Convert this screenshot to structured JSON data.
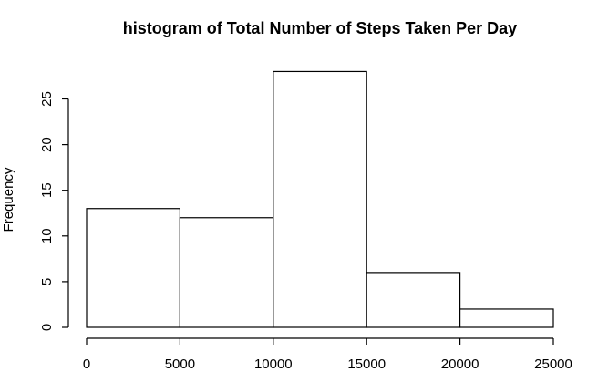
{
  "chart_data": {
    "type": "bar",
    "title": "histogram of Total Number of Steps Taken Per Day",
    "xlabel": "",
    "ylabel": "Frequency",
    "bins": [
      {
        "start": 0,
        "end": 5000,
        "count": 13
      },
      {
        "start": 5000,
        "end": 10000,
        "count": 12
      },
      {
        "start": 10000,
        "end": 15000,
        "count": 28
      },
      {
        "start": 15000,
        "end": 20000,
        "count": 6
      },
      {
        "start": 20000,
        "end": 25000,
        "count": 2
      }
    ],
    "xticks": [
      0,
      5000,
      10000,
      15000,
      20000,
      25000
    ],
    "yticks": [
      0,
      5,
      10,
      15,
      20,
      25
    ],
    "xlim": [
      0,
      25000
    ],
    "ylim": [
      0,
      28
    ],
    "grid": false,
    "legend": "none",
    "bar_fill": "#ffffff",
    "bar_stroke": "#000000"
  }
}
